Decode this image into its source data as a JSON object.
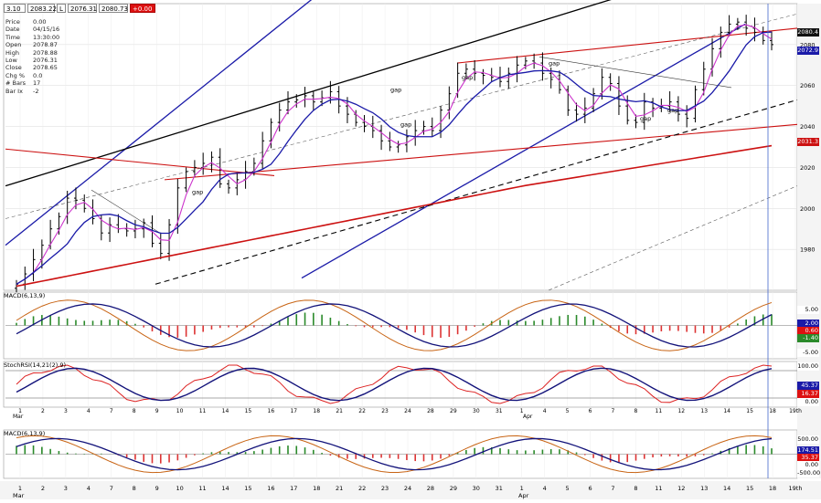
{
  "topbar": {
    "f1": "3.10",
    "f2": "2083.22",
    "f3": "L",
    "f4": "2076.31",
    "f5": "2080.73",
    "f6": "+0.00"
  },
  "info": [
    {
      "k": "Price",
      "v": "0.00"
    },
    {
      "k": "Date",
      "v": "04/15/16"
    },
    {
      "k": "Time",
      "v": "13:30:00"
    },
    {
      "k": "Open",
      "v": "2078.87"
    },
    {
      "k": "High",
      "v": "2078.88"
    },
    {
      "k": "Low",
      "v": "2076.31"
    },
    {
      "k": "Close",
      "v": "2078.65"
    },
    {
      "k": "Chg %",
      "v": "0.0"
    },
    {
      "k": "# Bars",
      "v": "17"
    },
    {
      "k": "Bar Ix",
      "v": "-2"
    }
  ],
  "price_tags": {
    "last": "2080.4",
    "ma_short": "2072.9",
    "ma_long": "2031.3"
  },
  "macd1": {
    "label": "MACD(6,13,9)",
    "tag1": "5.00",
    "tag2": "2.00",
    "tag3": "0.60",
    "tag4": "-1.40",
    "tag5": "-5.00"
  },
  "rsi": {
    "label": "StochRSI(14,21(2),9)",
    "tag1": "100.00",
    "tag2": "45.37",
    "tag3": "16.37",
    "tag4": "0.00"
  },
  "macd2": {
    "label": "MACD(6,13,9)",
    "tag1": "500.00",
    "tag2": "174.51",
    "tag3": "35.37",
    "tag4": "0.00",
    "tag5": "-500.00"
  },
  "chart_data": {
    "type": "ohlc",
    "title": "",
    "ylim": [
      1960,
      2100
    ],
    "y_ticks": [
      1980,
      2000,
      2020,
      2040,
      2060,
      2080
    ],
    "x_ticks": [
      "1",
      "2",
      "3",
      "4",
      "7",
      "8",
      "9",
      "10",
      "11",
      "14",
      "15",
      "16",
      "17",
      "18",
      "21",
      "22",
      "23",
      "24",
      "28",
      "29",
      "30",
      "31",
      "1",
      "4",
      "5",
      "6",
      "7",
      "8",
      "11",
      "12",
      "13",
      "14",
      "15",
      "18",
      "19th"
    ],
    "month_labels": [
      "Mar",
      "Apr"
    ],
    "annotations": [
      "gap",
      "gap",
      "gap",
      "gap",
      "gap",
      "gap",
      "gap"
    ],
    "closes": [
      1963,
      1968,
      1975,
      1982,
      1990,
      1996,
      2005,
      2004,
      2000,
      1995,
      1988,
      1992,
      1990,
      1989,
      1990,
      1993,
      1983,
      1978,
      1992,
      2010,
      2018,
      2020,
      2022,
      2025,
      2012,
      2010,
      2014,
      2018,
      2022,
      2033,
      2042,
      2048,
      2052,
      2053,
      2055,
      2052,
      2054,
      2057,
      2050,
      2046,
      2042,
      2040,
      2038,
      2033,
      2030,
      2031,
      2035,
      2038,
      2040,
      2038,
      2048,
      2056,
      2066,
      2068,
      2066,
      2065,
      2064,
      2062,
      2066,
      2070,
      2072,
      2071,
      2066,
      2063,
      2058,
      2048,
      2046,
      2049,
      2056,
      2064,
      2061,
      2050,
      2043,
      2042,
      2052,
      2049,
      2050,
      2052,
      2046,
      2044,
      2058,
      2068,
      2078,
      2086,
      2090,
      2091,
      2088,
      2086,
      2082,
      2080
    ],
    "series": [
      {
        "name": "",
        "kind": "ma_fast",
        "color": "#cc33cc"
      },
      {
        "name": "",
        "kind": "ma_mid",
        "color": "#1a1aa8"
      },
      {
        "name": "",
        "kind": "ma_long",
        "color": "#cc1111"
      }
    ]
  },
  "colors": {
    "bars": "#000000",
    "blue": "#1a1aa8",
    "red": "#cc1111",
    "magenta": "#cc33cc",
    "green": "#2a8a2a",
    "hist_red": "#d33"
  }
}
